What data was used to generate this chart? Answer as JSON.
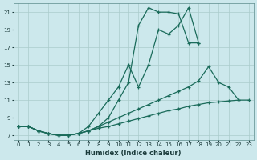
{
  "xlabel": "Humidex (Indice chaleur)",
  "xlim": [
    -0.5,
    23.5
  ],
  "ylim": [
    6.5,
    22.0
  ],
  "yticks": [
    7,
    9,
    11,
    13,
    15,
    17,
    19,
    21
  ],
  "xticks": [
    0,
    1,
    2,
    3,
    4,
    5,
    6,
    7,
    8,
    9,
    10,
    11,
    12,
    13,
    14,
    15,
    16,
    17,
    18,
    19,
    20,
    21,
    22,
    23
  ],
  "bg_color": "#cce8ec",
  "grid_color": "#aacccc",
  "line_color": "#1a6b5a",
  "lines": [
    {
      "x": [
        0,
        1,
        2,
        3,
        4,
        5,
        6,
        7,
        8,
        9,
        10,
        11,
        12,
        13,
        14,
        15,
        16,
        17,
        18
      ],
      "y": [
        8.0,
        8.0,
        7.5,
        7.2,
        7.0,
        7.0,
        7.2,
        8.0,
        9.5,
        11.0,
        12.5,
        15.0,
        12.5,
        15.0,
        19.0,
        18.5,
        19.5,
        21.5,
        17.5
      ]
    },
    {
      "x": [
        0,
        1,
        2,
        3,
        4,
        5,
        6,
        7,
        8,
        9,
        10,
        11,
        12,
        13,
        14,
        15,
        16,
        17,
        18
      ],
      "y": [
        8.0,
        8.0,
        7.5,
        7.2,
        7.0,
        7.0,
        7.2,
        7.5,
        8.0,
        9.0,
        11.0,
        13.0,
        19.5,
        21.5,
        21.0,
        21.0,
        20.8,
        17.5,
        17.5
      ]
    },
    {
      "x": [
        0,
        1,
        2,
        3,
        4,
        5,
        6,
        7,
        8,
        9,
        10,
        11,
        12,
        13,
        14,
        15,
        16,
        17,
        18,
        19,
        20,
        21,
        22
      ],
      "y": [
        8.0,
        8.0,
        7.5,
        7.2,
        7.0,
        7.0,
        7.2,
        7.5,
        8.0,
        8.5,
        9.0,
        9.5,
        10.0,
        10.5,
        11.0,
        11.5,
        12.0,
        12.5,
        13.2,
        14.8,
        13.0,
        12.5,
        11.0
      ]
    },
    {
      "x": [
        0,
        1,
        2,
        3,
        4,
        5,
        6,
        7,
        8,
        9,
        10,
        11,
        12,
        13,
        14,
        15,
        16,
        17,
        18,
        19,
        20,
        21,
        22,
        23
      ],
      "y": [
        8.0,
        8.0,
        7.5,
        7.2,
        7.0,
        7.0,
        7.2,
        7.5,
        7.8,
        8.0,
        8.3,
        8.6,
        8.9,
        9.2,
        9.5,
        9.8,
        10.0,
        10.3,
        10.5,
        10.7,
        10.8,
        10.9,
        11.0,
        11.0
      ]
    }
  ]
}
